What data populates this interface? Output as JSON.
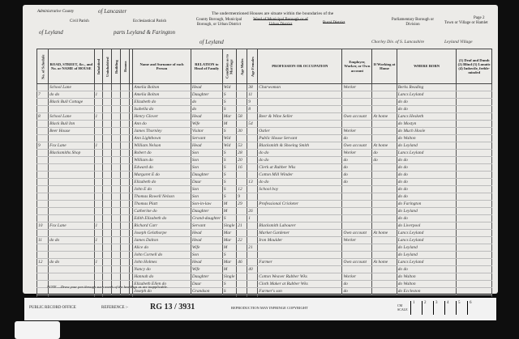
{
  "header": {
    "admin_county_label": "Administrative County",
    "admin_county_value": "of Lancaster",
    "intro": "The undermentioned Houses are situate within the boundaries of the",
    "page": "Page 2",
    "civil_parish_label": "Civil Parish",
    "civil_parish_value": "of Leyland",
    "ecclesiastical_parish_label": "Ecclesiastical Parish",
    "ecclesiastical_parish_value": "parts Leyland & Farington",
    "county_borough_label": "County Borough, Municipal Borough, or Urban District",
    "county_borough_value": "of Leyland",
    "ward_label": "Ward of Municipal Borough or of Urban District",
    "rural_district_label": "Rural District",
    "parliamentary_label": "Parliamentary Borough or Division",
    "parliamentary_value": "Chorley Div. of S. Lancashire",
    "town_label": "Town or Village or Hamlet",
    "town_value": "Leyland Village"
  },
  "columns": [
    "No. of Schedule",
    "ROAD, STREET, &c., and No. or NAME of HOUSE",
    "Inhabited",
    "Uninhabited",
    "Building",
    "Rooms",
    "Name and Surname of each Person",
    "RELATION to Head of Family",
    "Condition as to Marriage",
    "Age Males",
    "Age Females",
    "PROFESSION OR OCCUPATION",
    "Employer, Worker, or Own account",
    "If Working at Home",
    "WHERE BORN",
    "(1) Deaf and Dumb (2) Blind (3) Lunatic (4) Imbecile, feeble-minded"
  ],
  "rows": [
    {
      "sched": "",
      "street": "School Lane",
      "inh": "",
      "name": "Amelia Bolton",
      "rel": "Head",
      "cond": "Wid",
      "m": "",
      "f": "38",
      "occ": "Charwoman",
      "emp": "Worker",
      "home": "",
      "born": "Berks Reading"
    },
    {
      "sched": "7",
      "street": "do do",
      "inh": "1",
      "name": "Amelia Bolton",
      "rel": "Daughter",
      "cond": "S",
      "m": "",
      "f": "11",
      "occ": "",
      "emp": "",
      "home": "",
      "born": "Lancs Leyland"
    },
    {
      "sched": "",
      "street": "Black Bull Cottage",
      "inh": "",
      "name": "Elizabeth do",
      "rel": "do",
      "cond": "S",
      "m": "",
      "f": "9",
      "occ": "",
      "emp": "",
      "home": "",
      "born": "do do"
    },
    {
      "sched": "",
      "street": "",
      "inh": "",
      "name": "Isabella do",
      "rel": "do",
      "cond": "S",
      "m": "",
      "f": "8",
      "occ": "",
      "emp": "",
      "home": "",
      "born": "do do"
    },
    {
      "sched": "8",
      "street": "School Lane",
      "inh": "1",
      "name": "Henry Glover",
      "rel": "Head",
      "cond": "Mar",
      "m": "58",
      "f": "",
      "occ": "Beer & Wine Seller",
      "emp": "Own account",
      "home": "At home",
      "born": "Lancs Hesketh"
    },
    {
      "sched": "",
      "street": "Black Bull Inn",
      "inh": "",
      "name": "Ann do",
      "rel": "Wife",
      "cond": "M",
      "m": "",
      "f": "54",
      "occ": "",
      "emp": "",
      "home": "",
      "born": "do Mostyn"
    },
    {
      "sched": "",
      "street": "Beer House",
      "inh": "",
      "name": "James Thornley",
      "rel": "Visitor",
      "cond": "S",
      "m": "30",
      "f": "",
      "occ": "Ostler",
      "emp": "Worker",
      "home": "",
      "born": "do Much Hoole"
    },
    {
      "sched": "",
      "street": "",
      "inh": "",
      "name": "Ann Lightbown",
      "rel": "Servant",
      "cond": "Wid",
      "m": "",
      "f": "",
      "occ": "Public House Servant",
      "emp": "do",
      "home": "",
      "born": "do Walton"
    },
    {
      "sched": "9",
      "street": "Fox Lane",
      "inh": "1",
      "name": "William Nelson",
      "rel": "Head",
      "cond": "Wid",
      "m": "53",
      "f": "",
      "occ": "Blacksmith & Shoeing Smith",
      "emp": "Own account",
      "home": "At home",
      "born": "do Leyland"
    },
    {
      "sched": "",
      "street": "Blacksmiths Shop",
      "inh": "",
      "name": "Robert do",
      "rel": "Son",
      "cond": "S",
      "m": "28",
      "f": "",
      "occ": "do do",
      "emp": "Worker",
      "home": "do",
      "born": "Lancs Leyland"
    },
    {
      "sched": "",
      "street": "",
      "inh": "",
      "name": "William do",
      "rel": "Son",
      "cond": "S",
      "m": "20",
      "f": "",
      "occ": "do do",
      "emp": "do",
      "home": "do",
      "born": "do do"
    },
    {
      "sched": "",
      "street": "",
      "inh": "",
      "name": "Edward do",
      "rel": "Son",
      "cond": "S",
      "m": "16",
      "f": "",
      "occ": "Clerk at Rubber Wks",
      "emp": "do",
      "home": "",
      "born": "do do"
    },
    {
      "sched": "",
      "street": "",
      "inh": "",
      "name": "Margaret E do",
      "rel": "Daughter",
      "cond": "S",
      "m": "",
      "f": "",
      "occ": "Cotton Mill Winder",
      "emp": "do",
      "home": "",
      "born": "do do"
    },
    {
      "sched": "",
      "street": "",
      "inh": "",
      "name": "Elizabeth do",
      "rel": "Daur",
      "cond": "S",
      "m": "",
      "f": "13",
      "occ": "do do",
      "emp": "do",
      "home": "",
      "born": "do do"
    },
    {
      "sched": "",
      "street": "",
      "inh": "",
      "name": "John E do",
      "rel": "Son",
      "cond": "S",
      "m": "12",
      "f": "",
      "occ": "School boy",
      "emp": "",
      "home": "",
      "born": "do do"
    },
    {
      "sched": "",
      "street": "",
      "inh": "",
      "name": "Thomas Rowell Nelson",
      "rel": "Son",
      "cond": "S",
      "m": "9",
      "f": "",
      "occ": "",
      "emp": "",
      "home": "",
      "born": "do do"
    },
    {
      "sched": "",
      "street": "",
      "inh": "",
      "name": "Thomas Platt",
      "rel": "Son-in-law",
      "cond": "M",
      "m": "29",
      "f": "",
      "occ": "Professional Cricketer",
      "emp": "",
      "home": "",
      "born": "do Farington"
    },
    {
      "sched": "",
      "street": "",
      "inh": "",
      "name": "Catherine do",
      "rel": "Daughter",
      "cond": "M",
      "m": "",
      "f": "26",
      "occ": "",
      "emp": "",
      "home": "",
      "born": "do Leyland"
    },
    {
      "sched": "",
      "street": "",
      "inh": "",
      "name": "Edith Elizabeth do",
      "rel": "Grand-daughter",
      "cond": "S",
      "m": "",
      "f": "1",
      "occ": "",
      "emp": "",
      "home": "",
      "born": "do do"
    },
    {
      "sched": "10",
      "street": "Fox Lane",
      "inh": "1",
      "name": "Richard Carr",
      "rel": "Servant",
      "cond": "Single",
      "m": "21",
      "f": "",
      "occ": "Blacksmith Labourer",
      "emp": "",
      "home": "",
      "born": "do Liverpool"
    },
    {
      "sched": "",
      "street": "",
      "inh": "",
      "name": "Joseph Gelsthorpe",
      "rel": "Head",
      "cond": "Mar",
      "m": "",
      "f": "",
      "occ": "Market Gardener",
      "emp": "Own account",
      "home": "At home",
      "born": "Lancs Leyland"
    },
    {
      "sched": "11",
      "street": "do do",
      "inh": "1",
      "name": "James Dalton",
      "rel": "Head",
      "cond": "Mar",
      "m": "22",
      "f": "",
      "occ": "Iron Moulder",
      "emp": "Worker",
      "home": "",
      "born": "Lancs Leyland"
    },
    {
      "sched": "",
      "street": "",
      "inh": "",
      "name": "Alice do",
      "rel": "Wife",
      "cond": "M",
      "m": "",
      "f": "21",
      "occ": "",
      "emp": "",
      "home": "",
      "born": "do Leyland"
    },
    {
      "sched": "",
      "street": "",
      "inh": "",
      "name": "John Cornell do",
      "rel": "Son",
      "cond": "S",
      "m": "",
      "f": "",
      "occ": "",
      "emp": "",
      "home": "",
      "born": "do Leyland"
    },
    {
      "sched": "12",
      "street": "do do",
      "inh": "1",
      "name": "John Holmes",
      "rel": "Head",
      "cond": "Mar",
      "m": "46",
      "f": "",
      "occ": "Farmer",
      "emp": "Own account",
      "home": "At home",
      "born": "Lancs Leyland"
    },
    {
      "sched": "",
      "street": "",
      "inh": "",
      "name": "Nancy do",
      "rel": "Wife",
      "cond": "M",
      "m": "",
      "f": "40",
      "occ": "",
      "emp": "",
      "home": "",
      "born": "do do"
    },
    {
      "sched": "",
      "street": "",
      "inh": "",
      "name": "Hannah do",
      "rel": "Daughter",
      "cond": "Single",
      "m": "",
      "f": "",
      "occ": "Cotton Weaver Rubber Wks",
      "emp": "Worker",
      "home": "",
      "born": "do Walton"
    },
    {
      "sched": "",
      "street": "",
      "inh": "",
      "name": "Elizabeth Ellen do",
      "rel": "Daur",
      "cond": "S",
      "m": "",
      "f": "",
      "occ": "Cloth Maker at Rubber Wks",
      "emp": "do",
      "home": "",
      "born": "do Walton"
    },
    {
      "sched": "",
      "street": "",
      "inh": "",
      "name": "Joseph do",
      "rel": "Grandson",
      "cond": "S",
      "m": "",
      "f": "",
      "occ": "Farmer's son",
      "emp": "do",
      "home": "",
      "born": "do Eccleston"
    }
  ],
  "totals": {
    "label": "Total of Males and of Females",
    "sched": "6",
    "houses": "6",
    "males": "15",
    "females": "14"
  },
  "note": "NOTE.—Draw your pen through such words of the headings as are inapplicable.",
  "footer": {
    "office": "PUBLIC RECORD OFFICE",
    "reference_label": "REFERENCE :-",
    "reference": "RG 13 / 3931",
    "copyright": "REPRODUCTION MAY INFRINGE COPYRIGHT",
    "scale_label": "CM SCALE",
    "scale": [
      "1",
      "2",
      "3",
      "4",
      "5",
      "6"
    ]
  }
}
